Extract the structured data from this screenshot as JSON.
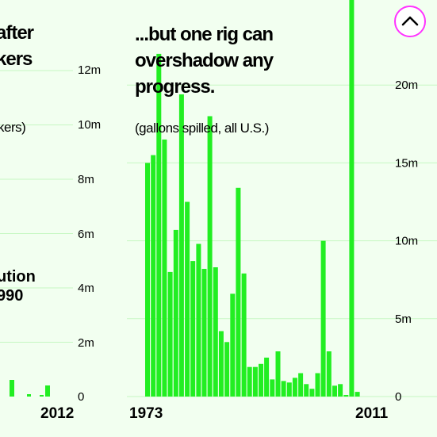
{
  "colors": {
    "bar": "#22ee22",
    "grid": "#c6f7c2",
    "background": "#f2fff0",
    "accent": "#ff33ff"
  },
  "left_fragment": {
    "title_lines": [
      "after",
      "kers"
    ],
    "sub": "kers)",
    "note_lines": [
      "ution",
      "990"
    ],
    "axis_labels": [
      "0",
      "2m",
      "4m",
      "6m",
      "8m",
      "10m",
      "12m"
    ],
    "end_year": "2012"
  },
  "nav": {
    "icon": "chevron-up-icon"
  },
  "chart_data": {
    "type": "bar",
    "title_lines": [
      "...but one rig can",
      "overshadow any",
      "progress."
    ],
    "subtitle": "(gallons spilled, all U.S.)",
    "x": [
      1973,
      1974,
      1975,
      1976,
      1977,
      1978,
      1979,
      1980,
      1981,
      1982,
      1983,
      1984,
      1985,
      1986,
      1987,
      1988,
      1989,
      1990,
      1991,
      1992,
      1993,
      1994,
      1995,
      1996,
      1997,
      1998,
      1999,
      2000,
      2001,
      2002,
      2003,
      2004,
      2005,
      2006,
      2007,
      2008,
      2009,
      2010,
      2011
    ],
    "values": [
      15.0,
      15.5,
      22.0,
      16.5,
      8.0,
      10.7,
      19.4,
      12.5,
      8.7,
      9.8,
      8.2,
      18.0,
      8.3,
      4.2,
      3.5,
      6.6,
      13.4,
      7.9,
      1.9,
      1.9,
      2.1,
      2.5,
      1.1,
      2.9,
      1.0,
      0.9,
      1.2,
      1.5,
      0.8,
      0.5,
      1.5,
      10.0,
      2.9,
      0.7,
      0.8,
      0.1,
      25.5,
      0.3,
      0.0
    ],
    "x_tick_labels": [
      "1973",
      "2011"
    ],
    "y_tick_labels": [
      "0",
      "5m",
      "10m",
      "15m",
      "20m"
    ],
    "y_ticks": [
      0,
      5,
      10,
      15,
      20
    ],
    "ylim": [
      0,
      25
    ],
    "grid": true,
    "legend": "none"
  }
}
